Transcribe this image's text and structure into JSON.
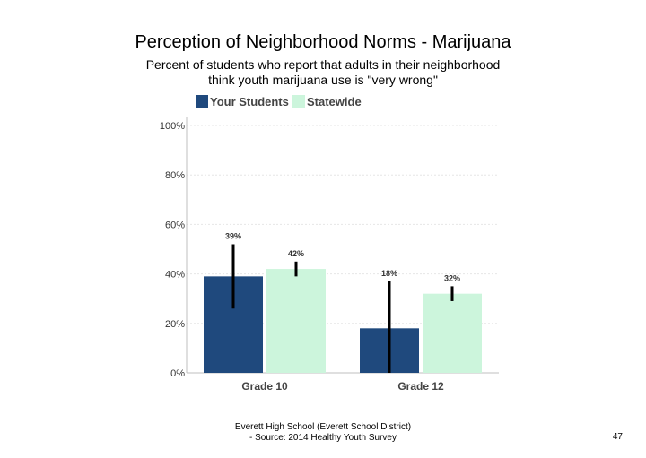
{
  "title": "Perception of Neighborhood Norms - Marijuana",
  "subtitle": {
    "line1": "Percent of students who report that adults in their neighborhood",
    "line2": "think youth marijuana use is \"very wrong\""
  },
  "footer": {
    "line1": "Everett High School (Everett School District)",
    "line2": "- Source: 2014 Healthy Youth Survey"
  },
  "page_number": "47",
  "colors": {
    "your_students": "#1f497d",
    "statewide": "#ccf5dc",
    "axis": "#bfbfbf",
    "grid": "#e6e6e6",
    "text": "#333333"
  },
  "chart_data": {
    "type": "bar",
    "categories": [
      "Grade 10",
      "Grade 12"
    ],
    "series": [
      {
        "name": "Your Students",
        "values": [
          39,
          18
        ],
        "labels": [
          "39%",
          "18%"
        ],
        "error_low": [
          26,
          0
        ],
        "error_high": [
          52,
          37
        ]
      },
      {
        "name": "Statewide",
        "values": [
          42,
          32
        ],
        "labels": [
          "42%",
          "32%"
        ],
        "error_low": [
          39,
          29
        ],
        "error_high": [
          45,
          35
        ]
      }
    ],
    "ylim": [
      0,
      100
    ],
    "yticks": [
      0,
      20,
      40,
      60,
      80,
      100
    ],
    "ytick_labels": [
      "0%",
      "20%",
      "40%",
      "60%",
      "80%",
      "100%"
    ],
    "grid": true,
    "legend_position": "top-left"
  }
}
